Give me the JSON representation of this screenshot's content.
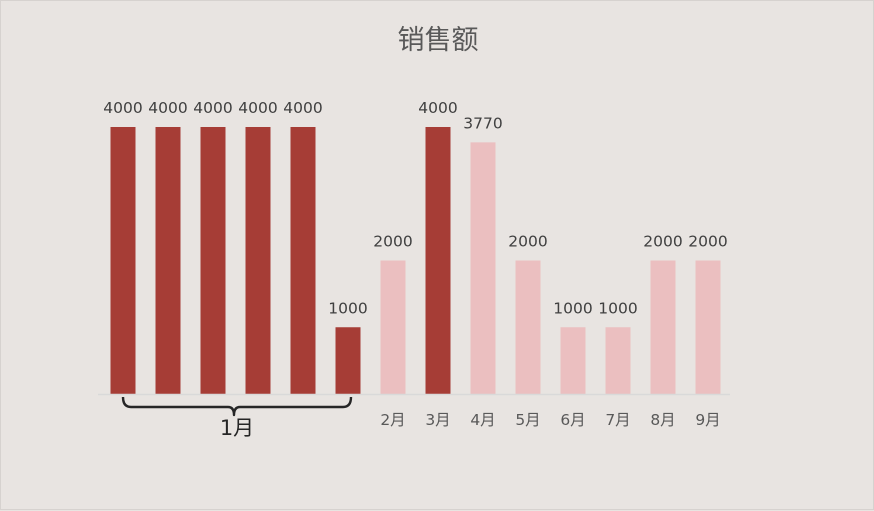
{
  "chart_data": {
    "type": "bar",
    "title": "销售额",
    "categories": [
      "",
      "",
      "",
      "",
      "",
      "",
      "2月",
      "3月",
      "4月",
      "5月",
      "6月",
      "7月",
      "8月",
      "9月"
    ],
    "values": [
      4000,
      4000,
      4000,
      4000,
      4000,
      1000,
      2000,
      4000,
      3770,
      2000,
      1000,
      1000,
      2000,
      2000
    ],
    "highlighted": [
      true,
      true,
      true,
      true,
      true,
      true,
      false,
      true,
      false,
      false,
      false,
      false,
      false,
      false
    ],
    "group_labels": [
      {
        "label": "1月",
        "from": 0,
        "to": 5
      }
    ],
    "ylim": [
      0,
      4000
    ],
    "xlabel": "",
    "ylabel": "",
    "grid": false,
    "legend": "none",
    "colors": {
      "highlight": "#a63d36",
      "normal": "#ebbfc0",
      "axis": "#d9d9d9",
      "bracket": "#262626"
    }
  }
}
